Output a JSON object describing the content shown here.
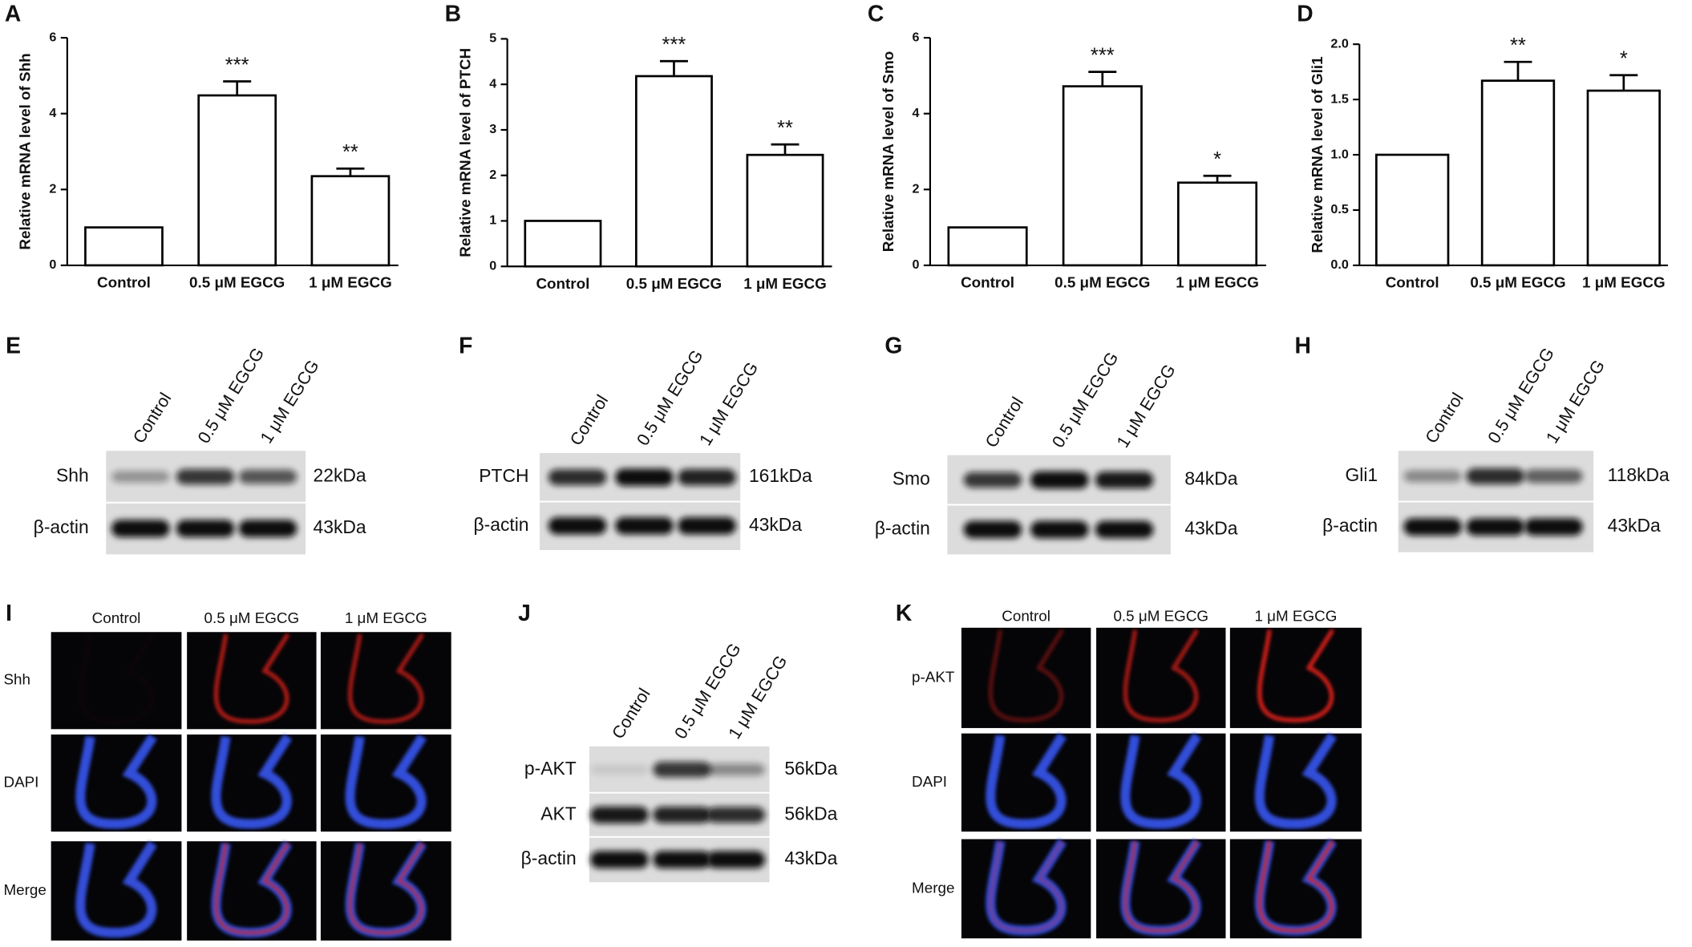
{
  "chart_data": [
    {
      "type": "bar",
      "panel": "A",
      "y_label": "Relative mRNA level of Shh",
      "categories": [
        "Control",
        "0.5 μM EGCG",
        "1 μM EGCG"
      ],
      "values": [
        1,
        4.48,
        2.35
      ],
      "errors": [
        null,
        0.37,
        0.2
      ],
      "annotations": [
        null,
        "***",
        "**"
      ],
      "ylim": [
        0,
        6
      ],
      "yticks": [
        0,
        2,
        4,
        6
      ],
      "color": "#ffffff"
    },
    {
      "type": "bar",
      "panel": "B",
      "y_label": "Relative mRNA level of PTCH",
      "categories": [
        "Control",
        "0.5 μM EGCG",
        "1 μM EGCG"
      ],
      "values": [
        1,
        4.18,
        2.45
      ],
      "errors": [
        null,
        0.33,
        0.23
      ],
      "annotations": [
        null,
        "***",
        "**"
      ],
      "ylim": [
        0,
        5
      ],
      "yticks": [
        0,
        1,
        2,
        3,
        4,
        5
      ],
      "color": "#ffffff"
    },
    {
      "type": "bar",
      "panel": "C",
      "y_label": "Relative mRNA level of Smo",
      "categories": [
        "Control",
        "0.5 μM EGCG",
        "1 μM EGCG"
      ],
      "values": [
        1,
        4.72,
        2.18
      ],
      "errors": [
        null,
        0.38,
        0.18
      ],
      "annotations": [
        null,
        "***",
        "*"
      ],
      "ylim": [
        0,
        6
      ],
      "yticks": [
        0,
        2,
        4,
        6
      ],
      "color": "#ffffff"
    },
    {
      "type": "bar",
      "panel": "D",
      "y_label": "Relative mRNA level of Gli1",
      "categories": [
        "Control",
        "0.5 μM EGCG",
        "1 μM EGCG"
      ],
      "values": [
        1,
        1.67,
        1.58
      ],
      "errors": [
        null,
        0.17,
        0.14
      ],
      "annotations": [
        null,
        "**",
        "*"
      ],
      "ylim": [
        0,
        2
      ],
      "yticks": [
        {
          "value": 0,
          "label": "0.0"
        },
        0.5,
        {
          "value": 1,
          "label": "1.0"
        },
        1.5,
        {
          "value": 2,
          "label": "2.0"
        }
      ],
      "color": "#ffffff"
    }
  ],
  "blots": [
    {
      "panel": "E",
      "lanes": [
        "Control",
        "0.5 μM EGCG",
        "1 μM EGCG"
      ],
      "rows": [
        {
          "protein": "Shh",
          "size": "22kDa"
        },
        {
          "protein": "β-actin",
          "size": "43kDa"
        }
      ]
    },
    {
      "panel": "F",
      "lanes": [
        "Control",
        "0.5 μM EGCG",
        "1 μM EGCG"
      ],
      "rows": [
        {
          "protein": "PTCH",
          "size": "161kDa"
        },
        {
          "protein": "β-actin",
          "size": "43kDa"
        }
      ]
    },
    {
      "panel": "G",
      "lanes": [
        "Control",
        "0.5 μM EGCG",
        "1 μM EGCG"
      ],
      "rows": [
        {
          "protein": "Smo",
          "size": "84kDa"
        },
        {
          "protein": "β-actin",
          "size": "43kDa"
        }
      ]
    },
    {
      "panel": "H",
      "lanes": [
        "Control",
        "0.5 μM EGCG",
        "1 μM EGCG"
      ],
      "rows": [
        {
          "protein": "Gli1",
          "size": "118kDa"
        },
        {
          "protein": "β-actin",
          "size": "43kDa"
        }
      ]
    },
    {
      "panel": "J",
      "lanes": [
        "Control",
        "0.5 μM EGCG",
        "1 μM EGCG"
      ],
      "rows": [
        {
          "protein": "p-AKT",
          "size": "56kDa"
        },
        {
          "protein": "AKT",
          "size": "56kDa"
        },
        {
          "protein": "β-actin",
          "size": "43kDa"
        }
      ]
    }
  ],
  "immunofluorescence": [
    {
      "panel": "I",
      "columns": [
        "Control",
        "0.5 μM EGCG",
        "1 μM EGCG"
      ],
      "rows": [
        "Shh",
        "DAPI",
        "Merge"
      ]
    },
    {
      "panel": "K",
      "columns": [
        "Control",
        "0.5 μM EGCG",
        "1 μM EGCG"
      ],
      "rows": [
        "p-AKT",
        "DAPI",
        "Merge"
      ]
    }
  ]
}
